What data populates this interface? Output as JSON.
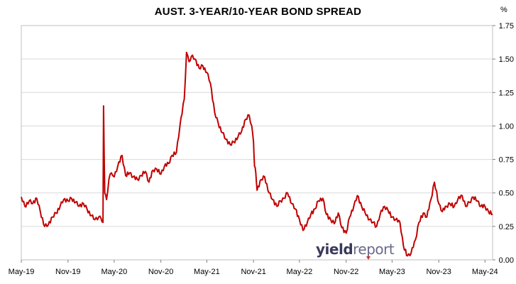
{
  "chart_data": {
    "type": "line",
    "title": "AUST. 3-YEAR/10-YEAR BOND SPREAD",
    "ylabel": "%",
    "xlabel": "",
    "ylim": [
      0,
      1.75
    ],
    "xlim": [
      "2019-05-01",
      "2024-05-31"
    ],
    "y_ticks": [
      "0.00",
      "0.25",
      "0.50",
      "0.75",
      "1.00",
      "1.25",
      "1.50",
      "1.75"
    ],
    "y_axis_position": "right",
    "x_ticks": [
      {
        "date": "2019-05-01",
        "label": "May-19"
      },
      {
        "date": "2019-11-01",
        "label": "Nov-19"
      },
      {
        "date": "2020-05-01",
        "label": "May-20"
      },
      {
        "date": "2020-11-01",
        "label": "Nov-20"
      },
      {
        "date": "2021-05-01",
        "label": "May-21"
      },
      {
        "date": "2021-11-01",
        "label": "Nov-21"
      },
      {
        "date": "2022-05-01",
        "label": "May-22"
      },
      {
        "date": "2022-11-01",
        "label": "Nov-22"
      },
      {
        "date": "2023-05-01",
        "label": "May-23"
      },
      {
        "date": "2023-11-01",
        "label": "Nov-23"
      },
      {
        "date": "2024-05-01",
        "label": "May-24"
      }
    ],
    "grid": "horizontal",
    "line_color": "#c00000",
    "x": [
      "2019-05-01",
      "2019-05-15",
      "2019-06-01",
      "2019-06-15",
      "2019-07-01",
      "2019-07-15",
      "2019-08-01",
      "2019-08-15",
      "2019-09-01",
      "2019-09-15",
      "2019-10-01",
      "2019-10-15",
      "2019-11-01",
      "2019-11-15",
      "2019-12-01",
      "2019-12-15",
      "2020-01-01",
      "2020-01-15",
      "2020-02-01",
      "2020-02-15",
      "2020-03-01",
      "2020-03-10",
      "2020-03-18",
      "2020-03-20",
      "2020-03-25",
      "2020-04-01",
      "2020-04-10",
      "2020-04-20",
      "2020-05-01",
      "2020-05-15",
      "2020-06-01",
      "2020-06-15",
      "2020-07-01",
      "2020-07-15",
      "2020-08-01",
      "2020-08-15",
      "2020-09-01",
      "2020-09-15",
      "2020-10-01",
      "2020-10-15",
      "2020-11-01",
      "2020-11-15",
      "2020-12-01",
      "2020-12-15",
      "2021-01-01",
      "2021-01-15",
      "2021-02-01",
      "2021-02-10",
      "2021-02-20",
      "2021-03-01",
      "2021-03-15",
      "2021-04-01",
      "2021-04-15",
      "2021-05-01",
      "2021-05-15",
      "2021-06-01",
      "2021-06-15",
      "2021-07-01",
      "2021-07-15",
      "2021-08-01",
      "2021-08-15",
      "2021-09-01",
      "2021-09-15",
      "2021-10-01",
      "2021-10-15",
      "2021-10-25",
      "2021-11-01",
      "2021-11-05",
      "2021-11-10",
      "2021-11-15",
      "2021-12-01",
      "2021-12-15",
      "2022-01-01",
      "2022-01-15",
      "2022-02-01",
      "2022-02-15",
      "2022-03-01",
      "2022-03-15",
      "2022-04-01",
      "2022-04-15",
      "2022-05-01",
      "2022-05-15",
      "2022-06-01",
      "2022-06-15",
      "2022-07-01",
      "2022-07-15",
      "2022-08-01",
      "2022-08-15",
      "2022-09-01",
      "2022-09-15",
      "2022-10-01",
      "2022-10-15",
      "2022-11-01",
      "2022-11-15",
      "2022-12-01",
      "2022-12-15",
      "2023-01-01",
      "2023-01-15",
      "2023-02-01",
      "2023-02-15",
      "2023-03-01",
      "2023-03-15",
      "2023-04-01",
      "2023-04-15",
      "2023-05-01",
      "2023-05-15",
      "2023-06-01",
      "2023-06-15",
      "2023-07-01",
      "2023-07-15",
      "2023-08-01",
      "2023-08-15",
      "2023-09-01",
      "2023-09-15",
      "2023-10-01",
      "2023-10-15",
      "2023-11-01",
      "2023-11-15",
      "2023-12-01",
      "2023-12-15",
      "2024-01-01",
      "2024-01-15",
      "2024-02-01",
      "2024-02-15",
      "2024-03-01",
      "2024-03-15",
      "2024-04-01",
      "2024-04-15",
      "2024-05-01",
      "2024-05-15",
      "2024-05-31"
    ],
    "values": [
      0.47,
      0.4,
      0.44,
      0.42,
      0.46,
      0.36,
      0.25,
      0.26,
      0.32,
      0.35,
      0.4,
      0.45,
      0.44,
      0.46,
      0.43,
      0.4,
      0.42,
      0.38,
      0.33,
      0.3,
      0.32,
      0.31,
      0.28,
      1.15,
      0.5,
      0.45,
      0.6,
      0.65,
      0.62,
      0.7,
      0.78,
      0.63,
      0.65,
      0.62,
      0.6,
      0.63,
      0.66,
      0.58,
      0.67,
      0.68,
      0.64,
      0.7,
      0.72,
      0.78,
      0.8,
      1.0,
      1.2,
      1.55,
      1.48,
      1.52,
      1.5,
      1.43,
      1.45,
      1.4,
      1.32,
      1.1,
      1.02,
      0.95,
      0.9,
      0.86,
      0.88,
      0.92,
      0.96,
      1.05,
      1.08,
      1.0,
      0.88,
      0.7,
      0.65,
      0.52,
      0.6,
      0.62,
      0.5,
      0.45,
      0.4,
      0.44,
      0.46,
      0.5,
      0.42,
      0.38,
      0.3,
      0.22,
      0.28,
      0.34,
      0.38,
      0.44,
      0.46,
      0.34,
      0.3,
      0.27,
      0.35,
      0.24,
      0.2,
      0.32,
      0.4,
      0.48,
      0.4,
      0.35,
      0.3,
      0.28,
      0.25,
      0.34,
      0.4,
      0.37,
      0.32,
      0.3,
      0.28,
      0.1,
      0.03,
      0.05,
      0.15,
      0.28,
      0.35,
      0.32,
      0.45,
      0.58,
      0.42,
      0.36,
      0.4,
      0.42,
      0.4,
      0.45,
      0.48,
      0.4,
      0.43,
      0.47,
      0.44,
      0.4,
      0.4,
      0.36,
      0.34
    ]
  },
  "watermark": {
    "part1": "yield",
    "part2": "report"
  }
}
